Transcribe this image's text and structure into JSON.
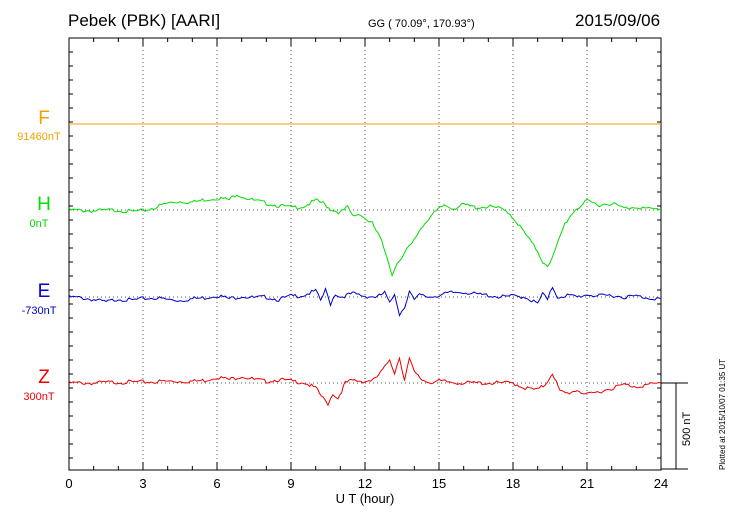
{
  "header": {
    "station": "Pebek (PBK)  [AARI]",
    "coords": "GG ( 70.09°, 170.93°)",
    "date": "2015/09/06"
  },
  "plotted_note": "Plotted at 2015/10/07 01:35 UT",
  "colors": {
    "F": "#f0a000",
    "H": "#00dd00",
    "E": "#0000cc",
    "Z": "#ee0000",
    "frame": "#000000",
    "grid": "#555555"
  },
  "channels": [
    {
      "key": "F",
      "name": "F",
      "baseline": "91460nT"
    },
    {
      "key": "H",
      "name": "H",
      "baseline": "0nT"
    },
    {
      "key": "E",
      "name": "E",
      "baseline": "-730nT"
    },
    {
      "key": "Z",
      "name": "Z",
      "baseline": "300nT"
    }
  ],
  "chart_data": {
    "type": "line",
    "title": "Pebek (PBK)  [AARI]",
    "xlabel": "U T (hour)",
    "xlim": [
      0,
      24
    ],
    "xticks": [
      0,
      3,
      6,
      9,
      12,
      15,
      18,
      21,
      24
    ],
    "scale_bar": {
      "label": "500 nT",
      "value_nT": 500
    },
    "series": [
      {
        "name": "F",
        "baseline_nT": 91460,
        "x": [
          0,
          24
        ],
        "y": [
          0,
          0
        ]
      },
      {
        "name": "H",
        "baseline_nT": 0,
        "x": [
          0,
          1,
          2,
          2.5,
          3,
          3.5,
          4,
          4.5,
          5,
          5.5,
          6,
          6.5,
          6.8,
          7,
          7.5,
          8,
          8.5,
          9,
          9.5,
          10,
          10.3,
          10.6,
          11,
          11.3,
          11.5,
          11.8,
          12,
          12.3,
          12.6,
          12.9,
          13.1,
          13.3,
          13.5,
          13.7,
          13.9,
          14.2,
          14.5,
          14.8,
          15.2,
          15.6,
          16,
          16.5,
          17,
          17.4,
          17.8,
          18.2,
          18.6,
          19,
          19.2,
          19.4,
          19.6,
          19.8,
          20.1,
          20.5,
          21,
          21.5,
          22,
          22.5,
          23,
          23.5,
          24
        ],
        "y": [
          0,
          -5,
          0,
          -10,
          -5,
          15,
          40,
          50,
          45,
          60,
          70,
          60,
          95,
          80,
          55,
          40,
          25,
          15,
          20,
          55,
          40,
          5,
          -15,
          15,
          -35,
          -20,
          -50,
          -80,
          -160,
          -270,
          -380,
          -300,
          -280,
          -230,
          -200,
          -120,
          -60,
          -20,
          30,
          10,
          30,
          15,
          20,
          10,
          -10,
          -80,
          -160,
          -240,
          -300,
          -320,
          -280,
          -200,
          -80,
          0,
          50,
          30,
          40,
          10,
          20,
          5,
          5
        ]
      },
      {
        "name": "E",
        "baseline_nT": -730,
        "x": [
          0,
          0.5,
          1,
          1.5,
          2,
          2.5,
          3,
          3.5,
          4,
          4.5,
          5,
          5.5,
          6,
          6.5,
          7,
          7.5,
          8,
          8.5,
          9,
          9.5,
          10,
          10.2,
          10.4,
          10.6,
          10.8,
          11,
          11.5,
          12,
          12.5,
          12.8,
          13.0,
          13.2,
          13.4,
          13.6,
          13.8,
          14.0,
          14.2,
          14.6,
          15,
          15.5,
          16,
          16.5,
          17,
          17.5,
          18,
          18.5,
          19,
          19.2,
          19.4,
          19.6,
          19.8,
          20.2,
          20.6,
          21,
          21.5,
          22,
          22.5,
          23,
          23.5,
          24
        ],
        "y": [
          0,
          -5,
          -15,
          -30,
          -10,
          -20,
          -10,
          -5,
          -15,
          -20,
          -10,
          -5,
          10,
          -10,
          5,
          -5,
          0,
          -15,
          5,
          10,
          35,
          -20,
          40,
          -40,
          20,
          0,
          20,
          5,
          0,
          25,
          -40,
          20,
          -100,
          -60,
          40,
          -20,
          10,
          0,
          10,
          25,
          30,
          15,
          10,
          0,
          5,
          0,
          -40,
          20,
          -20,
          60,
          0,
          10,
          0,
          15,
          5,
          10,
          0,
          5,
          -5,
          -10
        ]
      },
      {
        "name": "Z",
        "baseline_nT": 300,
        "x": [
          0,
          1,
          2,
          3,
          4,
          5,
          5.5,
          6,
          6.5,
          7,
          7.5,
          8,
          8.5,
          9,
          9.5,
          10,
          10.3,
          10.5,
          10.7,
          10.9,
          11.2,
          11.5,
          12,
          12.4,
          12.8,
          13.0,
          13.2,
          13.4,
          13.6,
          13.8,
          14.0,
          14.3,
          14.6,
          15,
          15.5,
          16,
          17,
          18,
          18.5,
          19,
          19.3,
          19.6,
          19.9,
          20.2,
          20.6,
          21,
          21.5,
          22,
          22.5,
          23,
          23.5,
          24
        ],
        "y": [
          0,
          0,
          5,
          5,
          10,
          10,
          15,
          35,
          20,
          40,
          20,
          10,
          20,
          10,
          5,
          -30,
          -90,
          -120,
          -60,
          -90,
          0,
          15,
          10,
          20,
          90,
          140,
          60,
          150,
          20,
          140,
          60,
          20,
          5,
          10,
          5,
          0,
          0,
          0,
          -30,
          -40,
          -10,
          60,
          -50,
          -60,
          -40,
          -70,
          -50,
          -30,
          -10,
          -20,
          -10,
          0
        ]
      }
    ]
  }
}
